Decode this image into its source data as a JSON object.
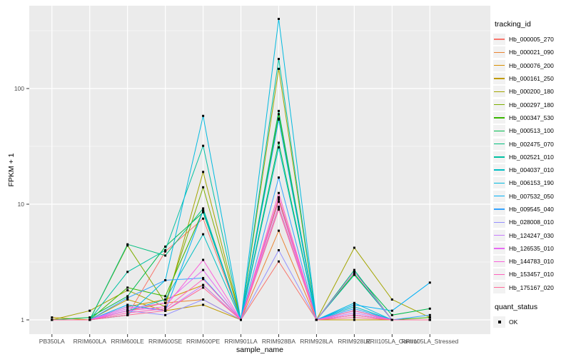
{
  "figure": {
    "background": "#FFFFFF",
    "panel_bg": "#EBEBEB",
    "grid_color": "#FFFFFF",
    "axis_text_color": "#4D4D4D",
    "tick_color": "#333333",
    "point_color": "#000000"
  },
  "chart_data": {
    "type": "line",
    "title": "",
    "xlabel": "sample_name",
    "ylabel": "FPKM + 1",
    "y_scale": "log10",
    "ylim": [
      0.75,
      520
    ],
    "y_ticks": [
      1,
      10,
      100
    ],
    "y_tick_labels": [
      "1",
      "10",
      "100"
    ],
    "y_minor_ticks": [
      3.162,
      31.62,
      316.2
    ],
    "grid": "on",
    "legend_position": "right",
    "legend_title": "tracking_id",
    "categories": [
      "PB350LA",
      "RRIM600LA",
      "RRIM600LE",
      "RRIM600SE",
      "RRIM600PE",
      "RRIM901LA",
      "RRIM928BA",
      "RRIM928LA",
      "RRIM928LE",
      "RRII105LA_Control",
      "RRII105LA_Stressed"
    ],
    "point_shape": "filled-square",
    "series": [
      {
        "name": "Hb_000005_270",
        "color": "#F8766D",
        "values": [
          1,
          1,
          1.1,
          3.9,
          7.5,
          1,
          3.2,
          1,
          1.1,
          1,
          1
        ]
      },
      {
        "name": "Hb_000021_090",
        "color": "#EA8331",
        "values": [
          1,
          1,
          1.2,
          1.4,
          1.5,
          1,
          5.9,
          1,
          1.2,
          1,
          1
        ]
      },
      {
        "name": "Hb_000076_200",
        "color": "#D89000",
        "values": [
          1,
          1,
          1.3,
          1.5,
          2.0,
          1,
          9.5,
          1,
          1.1,
          1,
          1
        ]
      },
      {
        "name": "Hb_000161_250",
        "color": "#C09B00",
        "values": [
          1.05,
          1,
          1.5,
          1.2,
          1.35,
          1,
          11,
          1,
          1,
          1,
          1
        ]
      },
      {
        "name": "Hb_000200_180",
        "color": "#A3A500",
        "values": [
          1,
          1.2,
          1.8,
          1.3,
          19,
          1,
          148,
          1,
          4.2,
          1.5,
          1.05
        ]
      },
      {
        "name": "Hb_000297_180",
        "color": "#7CAE00",
        "values": [
          1,
          1,
          4.4,
          1.4,
          14,
          1,
          55,
          1,
          1.2,
          1,
          1
        ]
      },
      {
        "name": "Hb_000347_530",
        "color": "#39B600",
        "values": [
          1,
          1,
          1.9,
          1.6,
          8.8,
          1,
          60,
          1,
          2.5,
          1,
          1.05
        ]
      },
      {
        "name": "Hb_000513_100",
        "color": "#00BB4E",
        "values": [
          1,
          1.05,
          1.6,
          4.3,
          8.5,
          1,
          34,
          1,
          2.6,
          1.1,
          1.25
        ]
      },
      {
        "name": "Hb_002475_070",
        "color": "#00BF7D",
        "values": [
          1,
          1,
          4.5,
          3.6,
          9.2,
          1,
          64,
          1,
          2.7,
          1,
          1
        ]
      },
      {
        "name": "Hb_002521_010",
        "color": "#00C1A3",
        "values": [
          1,
          1,
          2.6,
          4.0,
          32,
          1,
          180,
          1,
          2.45,
          1,
          1
        ]
      },
      {
        "name": "Hb_004037_010",
        "color": "#00BFC4",
        "values": [
          1,
          1,
          1.2,
          1.5,
          5.5,
          1,
          31,
          1,
          1.3,
          1,
          1
        ]
      },
      {
        "name": "Hb_006153_190",
        "color": "#00BAE0",
        "values": [
          1,
          1,
          1.1,
          2.2,
          58,
          1,
          400,
          1,
          1.4,
          1,
          1
        ]
      },
      {
        "name": "Hb_007532_050",
        "color": "#00B0F6",
        "values": [
          1,
          1,
          1.35,
          1.2,
          8.8,
          1,
          54,
          1,
          1.35,
          1.2,
          2.1
        ]
      },
      {
        "name": "Hb_009545_040",
        "color": "#35A2FF",
        "values": [
          1,
          1,
          1.55,
          2.2,
          2.3,
          1,
          17,
          1,
          1.25,
          1,
          1.1
        ]
      },
      {
        "name": "Hb_028008_010",
        "color": "#9590FF",
        "values": [
          1,
          1,
          1.2,
          1.1,
          1.5,
          1,
          4.0,
          1,
          1.1,
          1,
          1
        ]
      },
      {
        "name": "Hb_124247_030",
        "color": "#C77CFF",
        "values": [
          1,
          1,
          1.3,
          1.2,
          2.0,
          1,
          9.4,
          1,
          1.15,
          1,
          1
        ]
      },
      {
        "name": "Hb_126535_010",
        "color": "#E76BF3",
        "values": [
          1,
          1,
          1.25,
          1.4,
          2.7,
          1,
          10.5,
          1,
          2.6,
          1,
          1
        ]
      },
      {
        "name": "Hb_144783_010",
        "color": "#FA62DB",
        "values": [
          1,
          1,
          1.2,
          1.3,
          3.3,
          1,
          11.5,
          1,
          1.2,
          1,
          1
        ]
      },
      {
        "name": "Hb_153457_010",
        "color": "#FF62BC",
        "values": [
          1,
          1,
          1.15,
          1.25,
          2.25,
          1,
          12.5,
          1,
          1.1,
          1,
          1
        ]
      },
      {
        "name": "Hb_175167_020",
        "color": "#FF6A98",
        "values": [
          1,
          1,
          1.1,
          1.2,
          1.9,
          1,
          9.0,
          1,
          1.05,
          1,
          1
        ]
      }
    ],
    "legend2": {
      "title": "quant_status",
      "items": [
        {
          "label": "OK"
        }
      ]
    }
  }
}
